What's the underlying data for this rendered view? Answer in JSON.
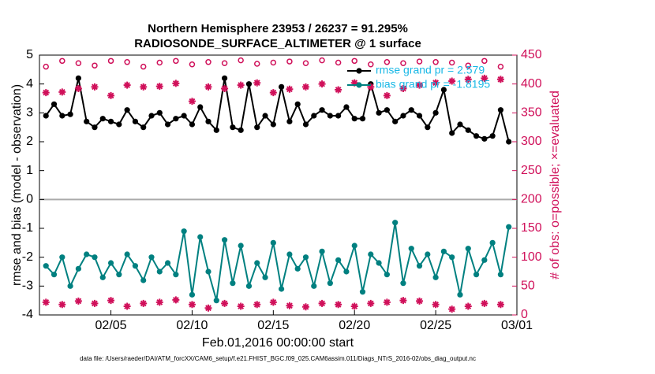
{
  "chart_data": {
    "type": "line",
    "title": "Northern Hemisphere 23953 / 26237 = 91.295%",
    "subtitle": "RADIOSONDE_SURFACE_ALTIMETER @ 1 surface",
    "x_label": "Feb.01,2016 00:00:00 start",
    "y_label": "rmse and bias (model - observation)",
    "y2_label": "# of obs: o=possible; ×=evaluated",
    "footnote": "data file: /Users/raeder/DAI/ATM_forcXX/CAM6_setup/f.e21.FHIST_BGC.f09_025.CAM6assim.011/Diags_NTrS_2016-02/obs_diag_output.nc",
    "xlim": [
      -0.4,
      29
    ],
    "xticks": [
      {
        "value": 4,
        "label": "02/05"
      },
      {
        "value": 9,
        "label": "02/10"
      },
      {
        "value": 14,
        "label": "02/15"
      },
      {
        "value": 19,
        "label": "02/20"
      },
      {
        "value": 24,
        "label": "02/25"
      },
      {
        "value": 29,
        "label": "03/01"
      }
    ],
    "ylim": [
      -4,
      5
    ],
    "yticks": [
      -4,
      -3,
      -2,
      -1,
      0,
      1,
      2,
      3,
      4,
      5
    ],
    "y2lim": [
      0,
      450
    ],
    "y2ticks": [
      0,
      50,
      100,
      150,
      200,
      250,
      300,
      350,
      400,
      450
    ],
    "legend": "upper right",
    "x": [
      0,
      0.5,
      1,
      1.5,
      2,
      2.5,
      3,
      3.5,
      4,
      4.5,
      5,
      5.5,
      6,
      6.5,
      7,
      7.5,
      8,
      8.5,
      9,
      9.5,
      10,
      10.5,
      11,
      11.5,
      12,
      12.5,
      13,
      13.5,
      14,
      14.5,
      15,
      15.5,
      16,
      16.5,
      17,
      17.5,
      18,
      18.5,
      19,
      19.5,
      20,
      20.5,
      21,
      21.5,
      22,
      22.5,
      23,
      23.5,
      24,
      24.5,
      25,
      25.5,
      26,
      26.5,
      27,
      27.5,
      28,
      28.5
    ],
    "series": [
      {
        "name": "rmse grand pr = 2.579",
        "color": "#000000",
        "marker": "o",
        "values": [
          2.9,
          3.3,
          2.9,
          2.95,
          4.2,
          2.7,
          2.5,
          2.8,
          2.7,
          2.6,
          3.1,
          2.7,
          2.5,
          2.9,
          3.0,
          2.6,
          2.8,
          2.9,
          2.6,
          3.2,
          2.7,
          2.4,
          4.2,
          2.5,
          2.4,
          4.0,
          2.5,
          2.9,
          2.6,
          3.9,
          2.7,
          3.3,
          2.6,
          2.9,
          3.1,
          2.9,
          2.9,
          3.2,
          2.8,
          2.8,
          4.0,
          3.0,
          3.1,
          2.7,
          2.9,
          3.1,
          2.9,
          2.5,
          3.0,
          3.8,
          2.3,
          2.6,
          2.4,
          2.2,
          2.1,
          2.2,
          3.1,
          2.0
        ]
      },
      {
        "name": "bias grand pr = -1.8195",
        "color": "#008080",
        "marker": "o",
        "values": [
          -2.3,
          -2.6,
          -2.0,
          -3.0,
          -2.4,
          -1.9,
          -2.0,
          -2.7,
          -2.2,
          -2.6,
          -1.9,
          -2.3,
          -2.8,
          -2.0,
          -2.5,
          -2.2,
          -2.6,
          -1.1,
          -3.3,
          -1.3,
          -2.5,
          -3.5,
          -1.4,
          -2.9,
          -1.6,
          -3.0,
          -2.2,
          -2.7,
          -1.5,
          -3.1,
          -1.9,
          -2.4,
          -2.0,
          -3.0,
          -1.8,
          -2.9,
          -2.1,
          -2.5,
          -1.6,
          -3.2,
          -1.9,
          -2.2,
          -2.6,
          -0.8,
          -2.9,
          -1.7,
          -2.3,
          -1.9,
          -2.7,
          -1.8,
          -2.0,
          -3.3,
          -1.7,
          -2.6,
          -2.1,
          -1.5,
          -2.6,
          -0.95
        ]
      },
      {
        "color": "#d0105a",
        "marker": "open",
        "axis": "y2",
        "x": [
          0,
          1,
          2,
          3,
          4,
          5,
          6,
          7,
          8,
          9,
          10,
          11,
          12,
          13,
          14,
          15,
          16,
          17,
          18,
          19,
          20,
          21,
          22,
          23,
          24,
          25,
          26,
          27,
          28
        ],
        "values": [
          430,
          440,
          436,
          432,
          440,
          438,
          430,
          437,
          440,
          434,
          438,
          436,
          441,
          435,
          437,
          439,
          436,
          441,
          437,
          440,
          434,
          438,
          436,
          439,
          438,
          437,
          432,
          440,
          430
        ]
      },
      {
        "color": "#d0105a",
        "marker": "star",
        "axis": "y2",
        "x": [
          0,
          1,
          2,
          3,
          4,
          5,
          6,
          7,
          8,
          9,
          10,
          11,
          12,
          13,
          14,
          15,
          16,
          17,
          18,
          19,
          20,
          21,
          22,
          23,
          24,
          25,
          26,
          27,
          28
        ],
        "values": [
          385,
          386,
          392,
          395,
          380,
          398,
          395,
          396,
          401,
          370,
          395,
          392,
          398,
          402,
          385,
          391,
          395,
          400,
          390,
          402,
          395,
          380,
          392,
          398,
          402,
          405,
          408,
          410,
          408
        ]
      },
      {
        "color": "#d0105a",
        "marker": "star",
        "axis": "y2",
        "x": [
          0,
          1,
          2,
          3,
          4,
          5,
          6,
          7,
          8,
          9,
          10,
          11,
          12,
          13,
          14,
          15,
          16,
          17,
          18,
          19,
          20,
          21,
          22,
          23,
          24,
          25,
          26,
          27,
          28
        ],
        "values": [
          22,
          18,
          24,
          20,
          25,
          15,
          20,
          22,
          26,
          18,
          12,
          20,
          15,
          18,
          22,
          16,
          14,
          20,
          18,
          15,
          20,
          22,
          25,
          24,
          18,
          10,
          15,
          20,
          18
        ]
      }
    ]
  }
}
